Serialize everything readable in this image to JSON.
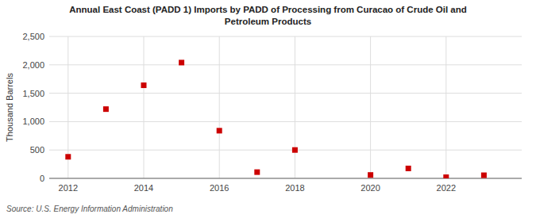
{
  "chart_data": {
    "type": "scatter",
    "title": "Annual East Coast (PADD 1) Imports by PADD of Processing from Curacao of Crude Oil and\nPetroleum Products",
    "ylabel": "Thousand Barrels",
    "annotations": [
      "Source: U.S. Energy Information Administration"
    ],
    "x": [
      2012,
      2013,
      2014,
      2015,
      2016,
      2017,
      2018,
      2020,
      2021,
      2022,
      2023
    ],
    "values": [
      380,
      1220,
      1640,
      2040,
      840,
      110,
      500,
      60,
      175,
      20,
      55
    ],
    "color": "#cc0000",
    "marker": "square",
    "xlim": [
      2011.5,
      2024.0
    ],
    "xticks": [
      2012,
      2014,
      2016,
      2018,
      2020,
      2022
    ],
    "ylim": [
      0,
      2500
    ],
    "yticks": [
      0,
      500,
      {
        "value": 1000,
        "label": "1,000"
      },
      {
        "value": 1500,
        "label": "1,500"
      },
      {
        "value": 2000,
        "label": "2,000"
      },
      {
        "value": 2500,
        "label": "2,500"
      }
    ],
    "grid": true
  }
}
